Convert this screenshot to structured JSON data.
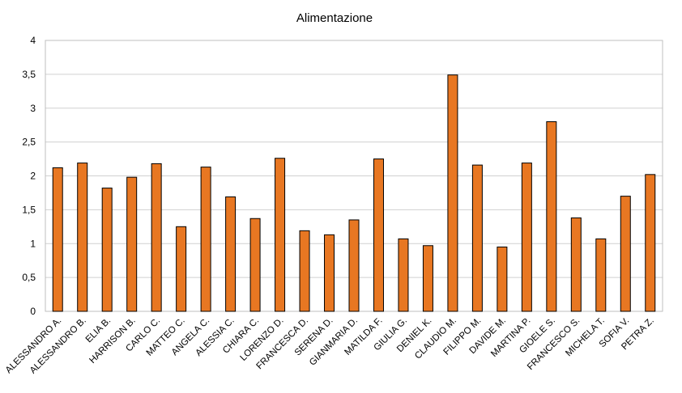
{
  "chart_data": {
    "type": "bar",
    "title": "Alimentazione",
    "xlabel": "",
    "ylabel": "",
    "ylim": [
      0,
      4
    ],
    "yticks": [
      "0",
      "0,5",
      "1",
      "1,5",
      "2",
      "2,5",
      "3",
      "3,5",
      "4"
    ],
    "ytick_values": [
      0,
      0.5,
      1,
      1.5,
      2,
      2.5,
      3,
      3.5,
      4
    ],
    "grid": true,
    "legend": "none",
    "bar_color": "#E87722",
    "categories": [
      "ALESSANDRO A.",
      "ALESSANDRO B.",
      "ELIA B.",
      "HARRISON B.",
      "CARLO C.",
      "MATTEO C.",
      "ANGELA C.",
      "ALESSIA C.",
      "CHIARA C.",
      "LORENZO D.",
      "FRANCESCA D.",
      "SERENA D.",
      "GIANMARIA D.",
      "MATILDA F.",
      "GIULIA G.",
      "DENIEL K.",
      "CLAUDIO M.",
      "FILIPPO M.",
      "DAVIDE M.",
      "MARTINA P.",
      "GIOELE S.",
      "FRANCESCO S.",
      "MICHELA T.",
      "SOFIA V.",
      "PETRA Z."
    ],
    "values": [
      2.12,
      2.19,
      1.82,
      1.98,
      2.18,
      1.25,
      2.13,
      1.69,
      1.37,
      2.26,
      1.19,
      1.13,
      1.35,
      2.25,
      1.07,
      0.97,
      3.49,
      2.16,
      0.95,
      2.19,
      2.8,
      1.38,
      1.07,
      1.7,
      2.02
    ]
  }
}
